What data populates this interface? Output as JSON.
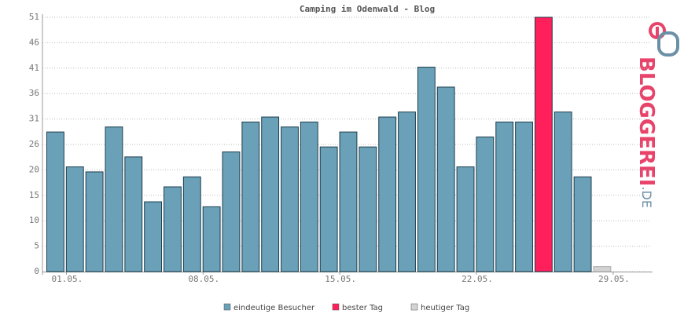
{
  "chart_data": {
    "type": "bar",
    "title": "Camping im Odenwald - Blog",
    "categories": [
      "01.05.",
      null,
      null,
      null,
      null,
      null,
      null,
      "08.05.",
      null,
      null,
      null,
      null,
      null,
      null,
      "15.05.",
      null,
      null,
      null,
      null,
      null,
      null,
      "22.05.",
      null,
      null,
      null,
      null,
      null,
      null,
      "29.05.",
      null,
      null
    ],
    "series": [
      {
        "name": "eindeutige Besucher",
        "color": "#6aa1b8",
        "values": [
          28,
          21,
          20,
          29,
          23,
          14,
          17,
          19,
          13,
          24,
          30,
          31,
          29,
          30,
          25,
          28,
          25,
          31,
          32,
          41,
          37,
          21,
          27,
          30,
          30,
          null,
          32,
          19,
          null,
          null,
          null
        ]
      },
      {
        "name": "bester Tag",
        "color": "#ff1f5a",
        "values": [
          null,
          null,
          null,
          null,
          null,
          null,
          null,
          null,
          null,
          null,
          null,
          null,
          null,
          null,
          null,
          null,
          null,
          null,
          null,
          null,
          null,
          null,
          null,
          null,
          null,
          51,
          null,
          null,
          null,
          null,
          null
        ]
      },
      {
        "name": "heutiger Tag",
        "color": "#d3d3d3",
        "values": [
          null,
          null,
          null,
          null,
          null,
          null,
          null,
          null,
          null,
          null,
          null,
          null,
          null,
          null,
          null,
          null,
          null,
          null,
          null,
          null,
          null,
          null,
          null,
          null,
          null,
          null,
          null,
          null,
          1,
          null,
          null
        ]
      }
    ],
    "ylim": [
      0,
      51
    ],
    "yticks": [
      0,
      {
        "value": 5.1,
        "label": "5"
      },
      {
        "value": 10.2,
        "label": "10"
      },
      {
        "value": 15.3,
        "label": "15"
      },
      {
        "value": 20.4,
        "label": "20"
      },
      {
        "value": 25.5,
        "label": "26"
      },
      {
        "value": 30.6,
        "label": "31"
      },
      {
        "value": 35.7,
        "label": "36"
      },
      {
        "value": 40.8,
        "label": "41"
      },
      {
        "value": 45.9,
        "label": "46"
      },
      51
    ],
    "grid": true
  },
  "logo": {
    "main": "BLOGGEREI",
    "suffix": ".DE"
  }
}
